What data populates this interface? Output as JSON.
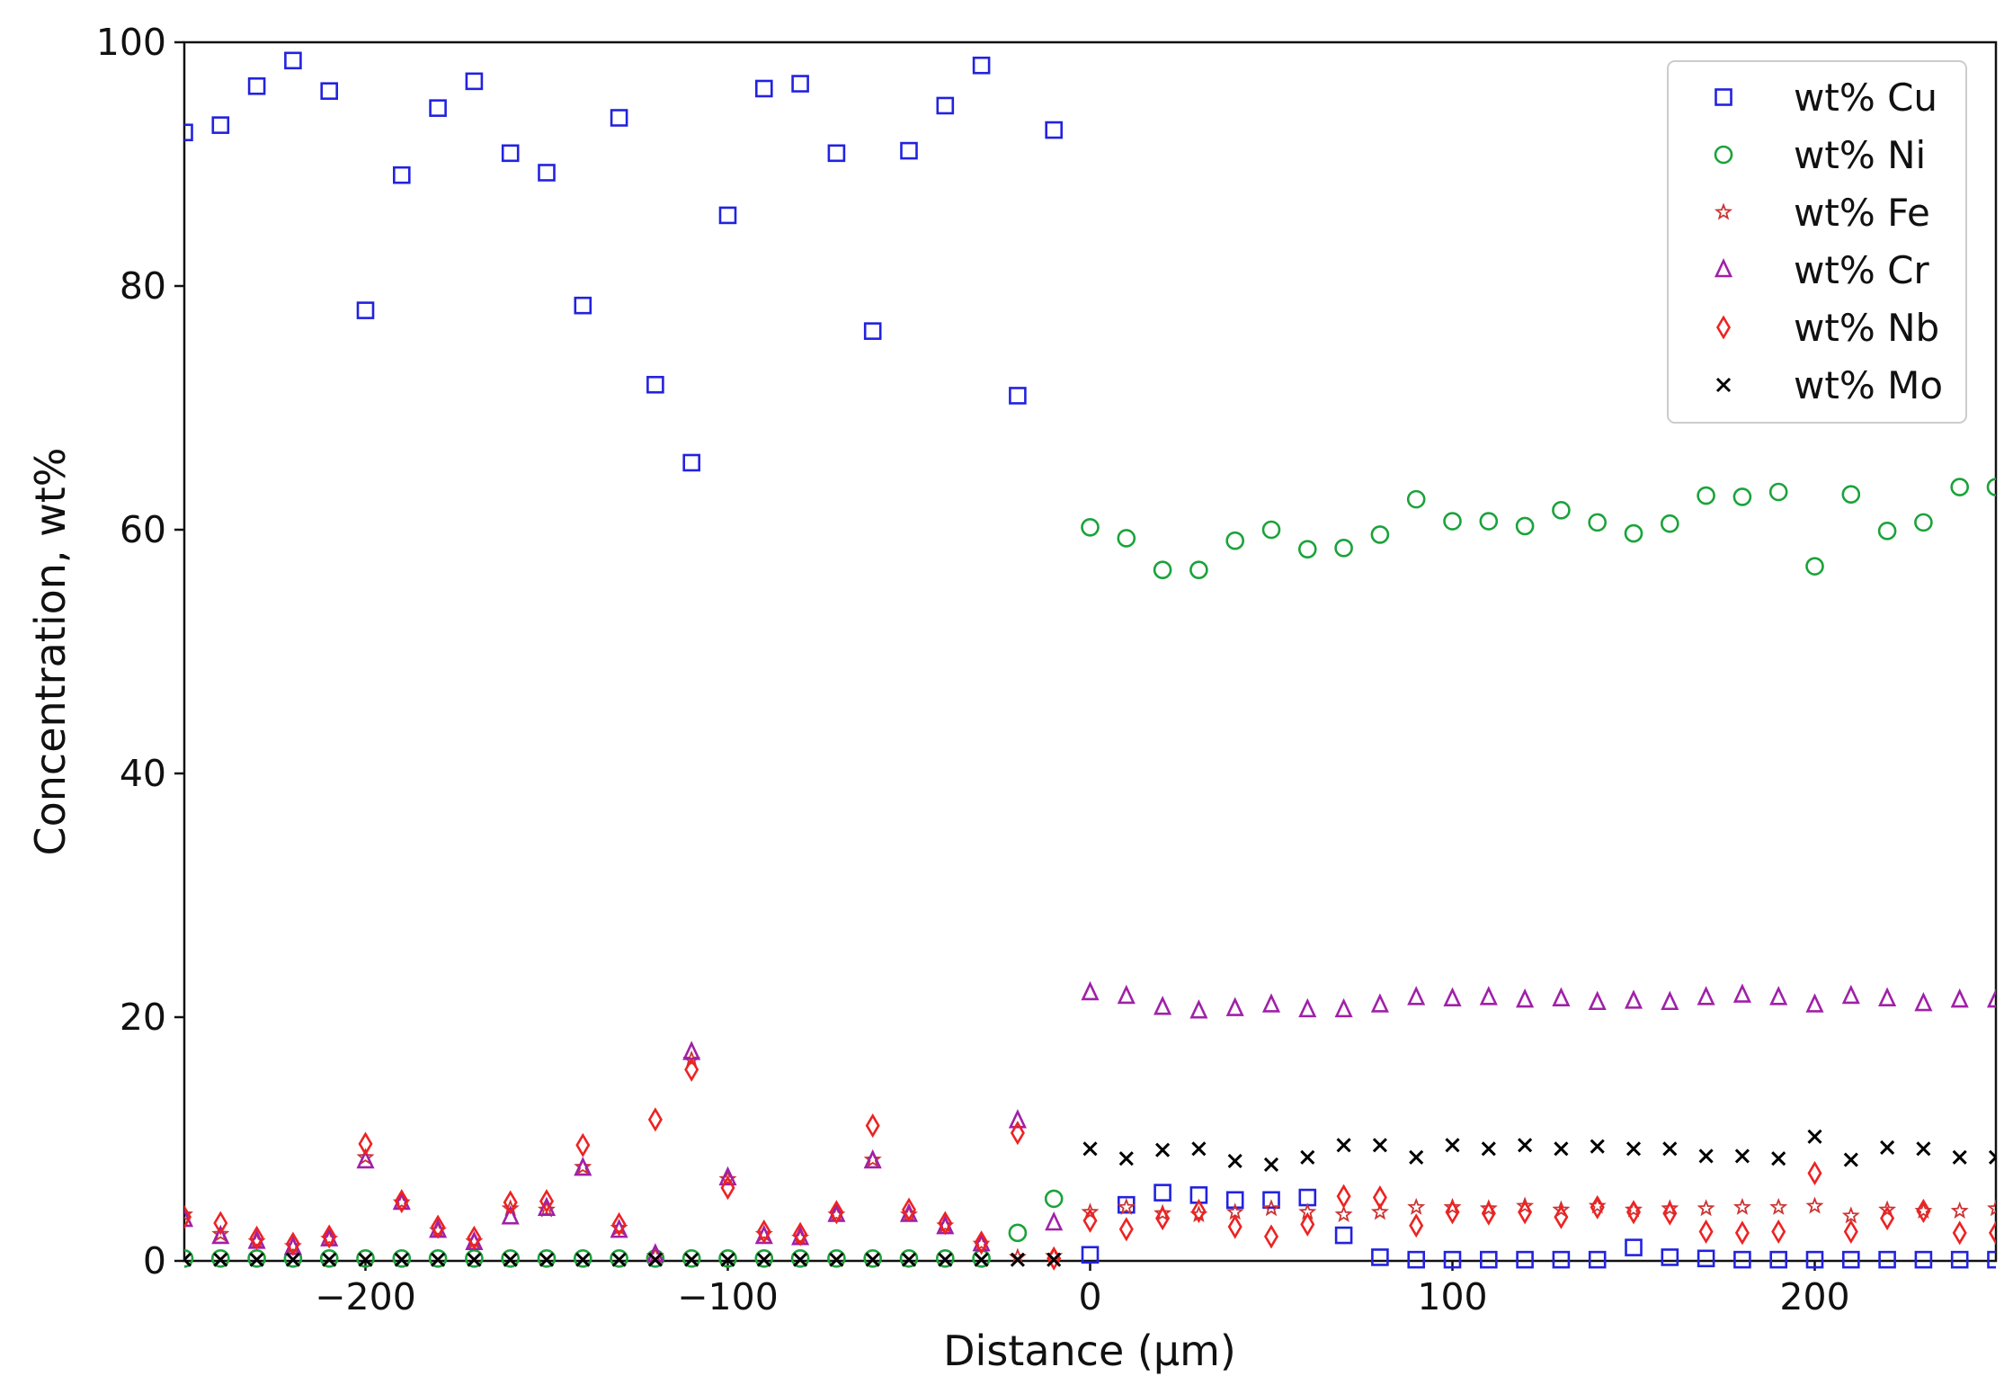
{
  "chart_data": {
    "type": "scatter",
    "title": "",
    "xlabel": "Distance (μm)",
    "ylabel": "Concentration, wt%",
    "xlim": [
      -250,
      250
    ],
    "ylim": [
      0,
      100
    ],
    "xticks": [
      -200,
      -100,
      0,
      100,
      200
    ],
    "yticks": [
      0,
      20,
      40,
      60,
      80,
      100
    ],
    "xtick_labels": [
      "−200",
      "−100",
      "0",
      "100",
      "200"
    ],
    "ytick_labels": [
      "0",
      "20",
      "40",
      "60",
      "80",
      "100"
    ],
    "grid": false,
    "legend_position": "top-right",
    "x": [
      -250,
      -240,
      -230,
      -220,
      -210,
      -200,
      -190,
      -180,
      -170,
      -160,
      -150,
      -140,
      -130,
      -120,
      -110,
      -100,
      -90,
      -80,
      -70,
      -60,
      -50,
      -40,
      -30,
      -20,
      -10,
      0,
      10,
      20,
      30,
      40,
      50,
      60,
      70,
      80,
      90,
      100,
      110,
      120,
      130,
      140,
      150,
      160,
      170,
      180,
      190,
      200,
      210,
      220,
      230,
      240,
      250
    ],
    "series": [
      {
        "name": "wt% Cu",
        "marker": "square",
        "color": "#2222e0",
        "values": [
          92.6,
          93.2,
          96.4,
          98.5,
          96.0,
          78.0,
          89.1,
          94.6,
          96.8,
          90.9,
          89.3,
          78.4,
          93.8,
          71.9,
          65.5,
          85.8,
          96.2,
          96.6,
          90.9,
          76.3,
          91.1,
          94.8,
          98.1,
          71.0,
          92.8,
          0.5,
          4.6,
          5.6,
          5.4,
          5.0,
          5.0,
          5.2,
          2.1,
          0.3,
          0.1,
          0.1,
          0.1,
          0.1,
          0.1,
          0.1,
          1.1,
          0.3,
          0.2,
          0.1,
          0.1,
          0.1,
          0.1,
          0.1,
          0.1,
          0.1,
          0.1
        ]
      },
      {
        "name": "wt% Ni",
        "marker": "circle",
        "color": "#1aa33a",
        "values": [
          0.2,
          0.2,
          0.2,
          0.2,
          0.2,
          0.2,
          0.2,
          0.2,
          0.2,
          0.2,
          0.2,
          0.2,
          0.2,
          0.2,
          0.2,
          0.2,
          0.2,
          0.2,
          0.2,
          0.2,
          0.2,
          0.2,
          0.2,
          2.3,
          5.1,
          60.2,
          59.3,
          56.7,
          56.7,
          59.1,
          60.0,
          58.4,
          58.5,
          59.6,
          62.5,
          60.7,
          60.7,
          60.3,
          61.6,
          60.6,
          59.7,
          60.5,
          62.8,
          62.7,
          63.1,
          57.0,
          62.9,
          59.9,
          60.6,
          63.5,
          63.5
        ]
      },
      {
        "name": "wt% Fe",
        "marker": "star",
        "color": "#cc3333",
        "values": [
          3.8,
          2.2,
          1.6,
          1.2,
          1.8,
          8.5,
          4.8,
          2.5,
          1.6,
          4.3,
          4.2,
          7.7,
          2.7,
          0.4,
          16.5,
          6.7,
          2.2,
          1.9,
          3.8,
          8.3,
          3.8,
          2.9,
          1.4,
          0.3,
          0.4,
          4.0,
          4.4,
          3.9,
          3.8,
          4.0,
          4.3,
          4.0,
          3.8,
          4.0,
          4.4,
          4.4,
          4.3,
          4.5,
          4.2,
          4.5,
          4.2,
          4.3,
          4.3,
          4.4,
          4.4,
          4.5,
          3.7,
          4.2,
          4.1,
          4.1,
          4.3
        ]
      },
      {
        "name": "wt% Cr",
        "marker": "triangle",
        "color": "#a020a8",
        "values": [
          3.4,
          2.0,
          1.6,
          1.1,
          1.8,
          8.2,
          4.8,
          2.5,
          1.5,
          3.6,
          4.3,
          7.6,
          2.5,
          0.5,
          17.1,
          6.8,
          2.0,
          1.9,
          3.8,
          8.2,
          3.8,
          2.8,
          1.4,
          11.5,
          3.1,
          22.0,
          21.7,
          20.8,
          20.5,
          20.7,
          21.0,
          20.6,
          20.6,
          21.0,
          21.6,
          21.5,
          21.6,
          21.4,
          21.5,
          21.2,
          21.3,
          21.2,
          21.6,
          21.8,
          21.6,
          21.0,
          21.7,
          21.5,
          21.1,
          21.4,
          21.4
        ]
      },
      {
        "name": "wt% Nb",
        "marker": "diamond",
        "color": "#ee2222",
        "values": [
          3.6,
          3.1,
          1.9,
          1.4,
          2.0,
          9.6,
          4.9,
          2.8,
          1.9,
          4.8,
          4.9,
          9.5,
          3.0,
          11.6,
          15.7,
          6.0,
          2.4,
          2.2,
          4.0,
          11.1,
          4.2,
          3.1,
          1.5,
          10.5,
          0.2,
          3.3,
          2.6,
          3.5,
          4.1,
          2.8,
          2.0,
          3.0,
          5.3,
          5.2,
          2.9,
          4.0,
          3.9,
          4.0,
          3.6,
          4.4,
          4.0,
          3.9,
          2.4,
          2.3,
          2.4,
          7.2,
          2.4,
          3.5,
          4.1,
          2.3,
          2.3
        ]
      },
      {
        "name": "wt% Mo",
        "marker": "x",
        "color": "#000000",
        "values": [
          0.1,
          0.1,
          0.1,
          0.1,
          0.1,
          0.1,
          0.1,
          0.1,
          0.1,
          0.1,
          0.1,
          0.1,
          0.1,
          0.1,
          0.1,
          0.1,
          0.1,
          0.1,
          0.1,
          0.1,
          0.1,
          0.1,
          0.1,
          0.1,
          0.1,
          9.2,
          8.4,
          9.1,
          9.2,
          8.2,
          7.9,
          8.5,
          9.5,
          9.5,
          8.5,
          9.5,
          9.2,
          9.5,
          9.2,
          9.4,
          9.2,
          9.2,
          8.6,
          8.6,
          8.4,
          10.2,
          8.3,
          9.3,
          9.2,
          8.5,
          8.5
        ]
      }
    ]
  }
}
